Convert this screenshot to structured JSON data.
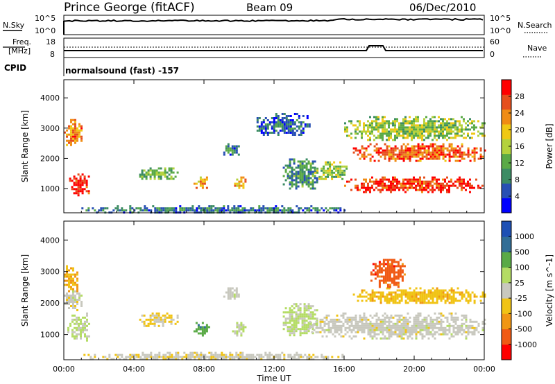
{
  "header": {
    "site": "Prince George (fitACF)",
    "beam": "Beam 09",
    "date": "06/Dec/2010"
  },
  "noise_panel": {
    "left_label": "N.Sky",
    "left_ticks": [
      "10^5",
      "10^0"
    ],
    "right_label": "N.Search",
    "right_ticks": [
      "10^5",
      "10^0"
    ]
  },
  "freq_panel": {
    "left_label_1": "Freq.",
    "left_label_2": "[MHz]",
    "left_ticks": [
      "18",
      "8"
    ],
    "right_label": "Nave",
    "right_ticks": [
      "60",
      "0"
    ],
    "cpid_label": "CPID",
    "mode_text": "normalsound (fast) -157"
  },
  "colors": {
    "power": [
      "#0000ff",
      "#2850b4",
      "#3c8c64",
      "#5aaa46",
      "#b4d23c",
      "#f0c814",
      "#f08c14",
      "#e6501e",
      "#ff0000"
    ],
    "velocity": [
      "#ff0000",
      "#f05a14",
      "#f09614",
      "#f0c314",
      "#c8c8be",
      "#b4dc64",
      "#5aaa46",
      "#326e96",
      "#1e50b4"
    ]
  },
  "chart_data": [
    {
      "type": "heatmap",
      "title": "",
      "xlabel": "",
      "ylabel": "Slant Range [km]",
      "x_ticks": [
        "00:00",
        "04:00",
        "08:00",
        "12:00",
        "16:00",
        "20:00",
        "00:00"
      ],
      "y_ticks": [
        "1000",
        "2000",
        "3000",
        "4000"
      ],
      "ylim": [
        200,
        4600
      ],
      "colorbar": {
        "label": "Power [dB]",
        "ticks": [
          "4",
          "8",
          "12",
          "16",
          "20",
          "24",
          "28"
        ],
        "range": [
          0,
          30
        ]
      },
      "echo_regions": [
        {
          "t0": 0.0,
          "t1": 1.0,
          "r0": 2400,
          "r1": 3300,
          "value": 22
        },
        {
          "t0": 0.3,
          "t1": 1.4,
          "r0": 800,
          "r1": 1500,
          "value": 28
        },
        {
          "t0": 4.3,
          "t1": 6.5,
          "r0": 1300,
          "r1": 1700,
          "value": 12
        },
        {
          "t0": 7.4,
          "t1": 8.3,
          "r0": 1000,
          "r1": 1400,
          "value": 20
        },
        {
          "t0": 9.6,
          "t1": 10.4,
          "r0": 1000,
          "r1": 1400,
          "value": 20
        },
        {
          "t0": 9.1,
          "t1": 10.0,
          "r0": 2100,
          "r1": 2500,
          "value": 8
        },
        {
          "t0": 11.0,
          "t1": 14.0,
          "r0": 2800,
          "r1": 3500,
          "value": 6
        },
        {
          "t0": 12.5,
          "t1": 14.5,
          "r0": 1000,
          "r1": 2000,
          "value": 9
        },
        {
          "t0": 14.3,
          "t1": 16.2,
          "r0": 1300,
          "r1": 1900,
          "value": 14
        },
        {
          "t0": 16.0,
          "t1": 24.0,
          "r0": 900,
          "r1": 1400,
          "value": 26
        },
        {
          "t0": 16.5,
          "t1": 24.0,
          "r0": 1900,
          "r1": 2500,
          "value": 24
        },
        {
          "t0": 16.0,
          "t1": 24.0,
          "r0": 2600,
          "r1": 3400,
          "value": 14
        },
        {
          "t0": 1.0,
          "t1": 16.0,
          "r0": 200,
          "r1": 450,
          "value": 7
        }
      ]
    },
    {
      "type": "heatmap",
      "title": "",
      "xlabel": "Time UT",
      "ylabel": "Slant Range [km]",
      "x_ticks": [
        "00:00",
        "04:00",
        "08:00",
        "12:00",
        "16:00",
        "20:00",
        "00:00"
      ],
      "y_ticks": [
        "1000",
        "2000",
        "3000",
        "4000"
      ],
      "ylim": [
        200,
        4600
      ],
      "colorbar": {
        "label": "Velocity [m s^-1]",
        "ticks": [
          "-1000",
          "-500",
          "-100",
          "-25",
          "25",
          "100",
          "500",
          "1000"
        ],
        "range": [
          -1200,
          1200
        ]
      },
      "echo_regions": [
        {
          "t0": 0.0,
          "t1": 0.8,
          "r0": 2400,
          "r1": 3200,
          "value": -400
        },
        {
          "t0": 0.2,
          "t1": 1.5,
          "r0": 800,
          "r1": 1700,
          "value": 150
        },
        {
          "t0": 0.0,
          "t1": 1.0,
          "r0": 1800,
          "r1": 2400,
          "value": 0
        },
        {
          "t0": 4.3,
          "t1": 6.5,
          "r0": 1300,
          "r1": 1700,
          "value": -200
        },
        {
          "t0": 7.4,
          "t1": 8.3,
          "r0": 1000,
          "r1": 1400,
          "value": 600
        },
        {
          "t0": 9.6,
          "t1": 10.4,
          "r0": 1000,
          "r1": 1400,
          "value": 150
        },
        {
          "t0": 9.1,
          "t1": 10.0,
          "r0": 2100,
          "r1": 2500,
          "value": 0
        },
        {
          "t0": 12.5,
          "t1": 14.5,
          "r0": 1000,
          "r1": 2000,
          "value": 200
        },
        {
          "t0": 14.0,
          "t1": 24.0,
          "r0": 900,
          "r1": 1700,
          "value": 0
        },
        {
          "t0": 16.5,
          "t1": 24.0,
          "r0": 2000,
          "r1": 2500,
          "value": -300
        },
        {
          "t0": 17.5,
          "t1": 19.5,
          "r0": 2500,
          "r1": 3400,
          "value": -800
        },
        {
          "t0": 1.0,
          "t1": 16.0,
          "r0": 200,
          "r1": 450,
          "value": -60
        }
      ]
    }
  ]
}
